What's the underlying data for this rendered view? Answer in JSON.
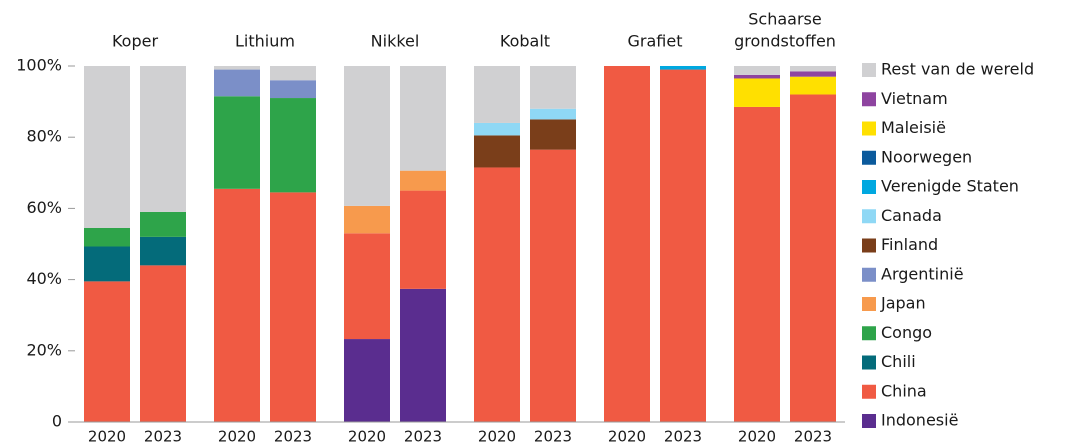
{
  "chart_data": {
    "type": "stacked-bar",
    "groups": [
      [
        "Koper"
      ],
      [
        "Lithium"
      ],
      [
        "Nikkel"
      ],
      [
        "Kobalt"
      ],
      [
        "Grafiet"
      ],
      [
        "Schaarse",
        "grondstoffen"
      ]
    ],
    "categories": [
      "2020",
      "2023",
      "2020",
      "2023",
      "2020",
      "2023",
      "2020",
      "2023",
      "2020",
      "2023",
      "2020",
      "2023"
    ],
    "ylim": [
      0,
      100
    ],
    "yticks": [
      0,
      {
        "value": 20,
        "label": "20%"
      },
      {
        "value": 40,
        "label": "40%"
      },
      {
        "value": 60,
        "label": "60%"
      },
      {
        "value": 80,
        "label": "80%"
      },
      {
        "value": 100,
        "label": "100%"
      }
    ],
    "legend": "right",
    "series": [
      {
        "name": "Indonesië",
        "color": "#5a2d8f",
        "values": [
          0,
          0,
          0,
          0,
          23.3,
          37.4,
          0,
          0,
          0,
          0,
          0,
          0
        ]
      },
      {
        "name": "China",
        "color": "#f05a43",
        "values": [
          39.5,
          44,
          65.5,
          64.5,
          29.7,
          27.6,
          71.5,
          76.5,
          100,
          99,
          88.5,
          92
        ]
      },
      {
        "name": "Chili",
        "color": "#046b7a",
        "values": [
          9.8,
          8,
          0,
          0,
          0,
          0,
          0,
          0,
          0,
          0,
          0,
          0
        ]
      },
      {
        "name": "Congo",
        "color": "#2ea44a",
        "values": [
          5.2,
          7,
          26,
          26.5,
          0,
          0,
          0,
          0,
          0,
          0,
          0,
          0
        ]
      },
      {
        "name": "Japan",
        "color": "#f79a4d",
        "values": [
          0,
          0,
          0,
          0,
          7.7,
          5.6,
          0,
          0,
          0,
          0,
          0,
          0
        ]
      },
      {
        "name": "Argentinië",
        "color": "#7b8fc8",
        "values": [
          0,
          0,
          7.5,
          5,
          0,
          0,
          0,
          0,
          0,
          0,
          0,
          0
        ]
      },
      {
        "name": "Finland",
        "color": "#7a3e1a",
        "values": [
          0,
          0,
          0,
          0,
          0,
          0,
          9,
          8.5,
          0,
          0,
          0,
          0
        ]
      },
      {
        "name": "Canada",
        "color": "#8fd8f5",
        "values": [
          0,
          0,
          0,
          0,
          0,
          0,
          3.5,
          3,
          0,
          0,
          0,
          0
        ]
      },
      {
        "name": "Verenigde Staten",
        "color": "#00a8e0",
        "values": [
          0,
          0,
          0,
          0,
          0,
          0,
          0,
          0,
          0,
          1,
          0,
          0
        ]
      },
      {
        "name": "Noorwegen",
        "color": "#0b5a9c",
        "values": [
          0,
          0,
          0,
          0,
          0,
          0,
          0,
          0,
          0,
          0,
          0,
          0
        ]
      },
      {
        "name": "Maleisië",
        "color": "#ffe000",
        "values": [
          0,
          0,
          0,
          0,
          0,
          0,
          0,
          0,
          0,
          0,
          8,
          5
        ]
      },
      {
        "name": "Vietnam",
        "color": "#8e44a0",
        "values": [
          0,
          0,
          0,
          0,
          0,
          0,
          0,
          0,
          0,
          0,
          1,
          1.5
        ]
      },
      {
        "name": "Rest van de wereld",
        "color": "#d0d0d2",
        "values": [
          45.5,
          41,
          1,
          4,
          39.3,
          29.4,
          16,
          12,
          0,
          0,
          2.5,
          1.5
        ]
      }
    ]
  }
}
